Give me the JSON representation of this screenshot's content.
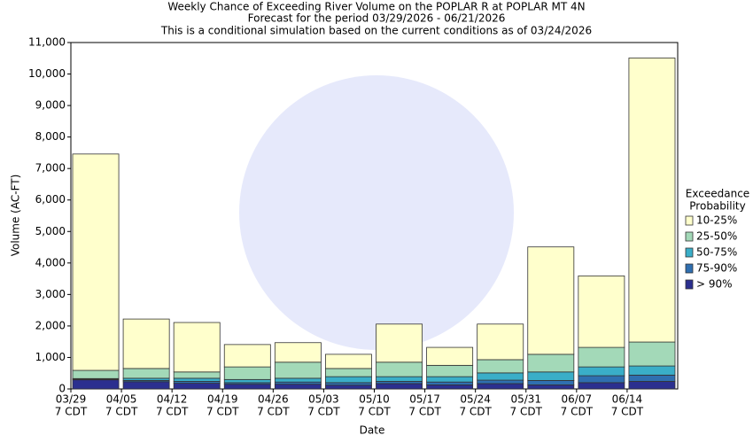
{
  "chart_data": {
    "type": "stacked_bar",
    "title": "Weekly Chance of Exceeding River Volume on the POPLAR R at POPLAR MT 4N",
    "subtitle": "Forecast for the period 03/29/2026 - 06/21/2026",
    "note": "This is a conditional simulation based on the current conditions as of 03/24/2026",
    "x_label": "Date",
    "y_label": "Volume (AC-FT)",
    "categories": [
      "03/29",
      "04/05",
      "04/12",
      "04/19",
      "04/26",
      "05/03",
      "05/10",
      "05/17",
      "05/24",
      "05/31",
      "06/07",
      "06/14"
    ],
    "category_sublabels": [
      "7 CDT",
      "7 CDT",
      "7 CDT",
      "7 CDT",
      "7 CDT",
      "7 CDT",
      "7 CDT",
      "7 CDT",
      "7 CDT",
      "7 CDT",
      "7 CDT",
      "7 CDT"
    ],
    "legend_title": [
      "Exceedance",
      "Probability"
    ],
    "series": [
      {
        "name": "> 90%",
        "color": "#2b2f8f",
        "values": [
          290,
          230,
          180,
          150,
          150,
          120,
          170,
          130,
          170,
          130,
          200,
          240
        ]
      },
      {
        "name": "75-90%",
        "color": "#2f6fb0",
        "values": [
          20,
          40,
          60,
          50,
          70,
          80,
          70,
          90,
          110,
          140,
          220,
          200
        ]
      },
      {
        "name": "50-75%",
        "color": "#3aaec8",
        "values": [
          20,
          70,
          100,
          100,
          120,
          190,
          150,
          170,
          230,
          270,
          280,
          290
        ]
      },
      {
        "name": "25-50%",
        "color": "#a3d9b8",
        "values": [
          260,
          310,
          200,
          400,
          510,
          260,
          460,
          360,
          420,
          560,
          620,
          760
        ]
      },
      {
        "name": "10-25%",
        "color": "#ffffcc",
        "values": [
          6870,
          1570,
          1570,
          710,
          620,
          450,
          1210,
          570,
          1130,
          3410,
          2270,
          9020
        ]
      }
    ],
    "ylim": [
      0,
      11000
    ],
    "yticks": [
      0,
      {
        "value": 1000,
        "label": "1,000"
      },
      {
        "value": 2000,
        "label": "2,000"
      },
      {
        "value": 3000,
        "label": "3,000"
      },
      {
        "value": 4000,
        "label": "4,000"
      },
      {
        "value": 5000,
        "label": "5,000"
      },
      {
        "value": 6000,
        "label": "6,000"
      },
      {
        "value": 7000,
        "label": "7,000"
      },
      {
        "value": 8000,
        "label": "8,000"
      },
      {
        "value": 9000,
        "label": "9,000"
      },
      {
        "value": 10000,
        "label": "10,000"
      },
      {
        "value": 11000,
        "label": "11,000"
      }
    ]
  }
}
